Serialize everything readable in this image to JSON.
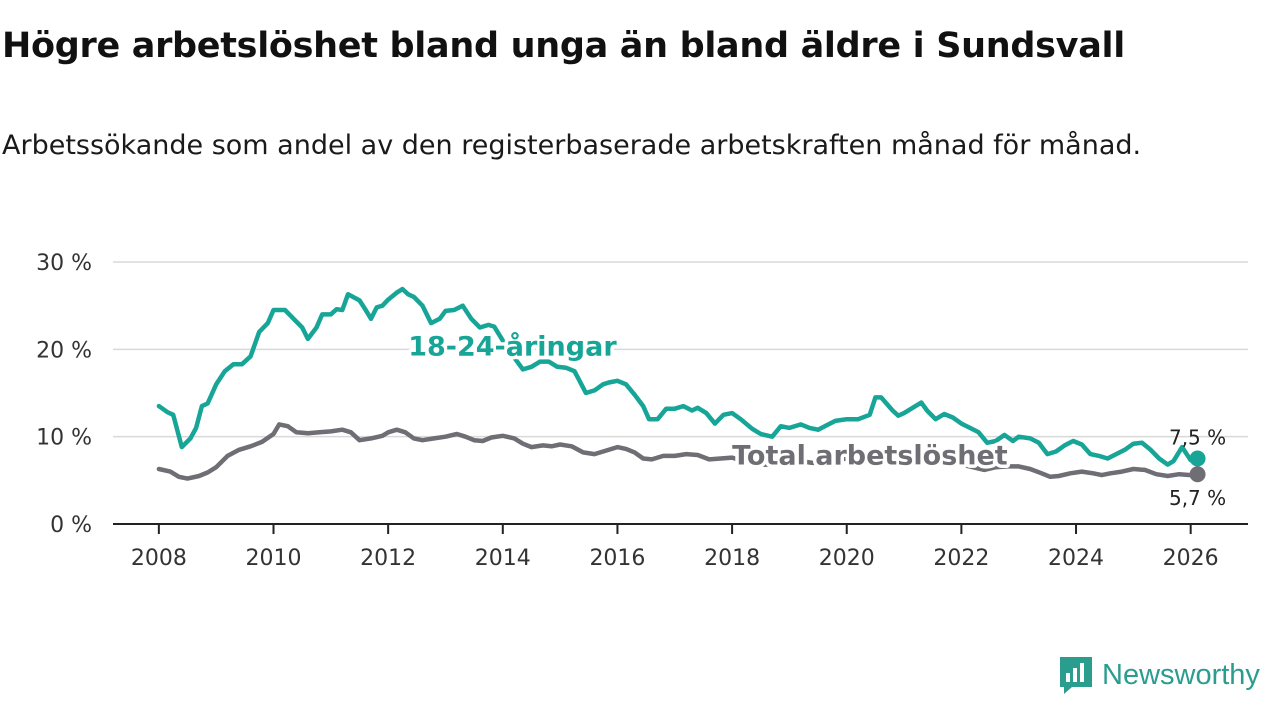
{
  "title": "Högre arbetslöshet bland unga än bland äldre i Sundsvall",
  "subtitle": "Arbetssökande som andel av den registerbaserade arbetskraften månad för månad.",
  "brand": {
    "name": "Newsworthy"
  },
  "colors": {
    "youth": "#16a596",
    "total": "#6f6e75",
    "grid": "#d9d9d9",
    "axis": "#222222"
  },
  "chart_data": {
    "type": "line",
    "title": "Högre arbetslöshet bland unga än bland äldre i Sundsvall",
    "xlabel": "",
    "ylabel": "",
    "xlim": [
      2007.2,
      2027.0
    ],
    "ylim": [
      0,
      30
    ],
    "x_ticks": [
      2008,
      2010,
      2012,
      2014,
      2016,
      2018,
      2020,
      2022,
      2024,
      2026
    ],
    "y_ticks": [
      0,
      10,
      20,
      30
    ],
    "y_tick_labels": [
      "0 %",
      "10 %",
      "20 %",
      "30 %"
    ],
    "grid": true,
    "series": [
      {
        "name": "18-24-åringar",
        "label": "18-24-åringar",
        "end_label": "7,5 %",
        "points": [
          [
            2008.0,
            13.5
          ],
          [
            2008.15,
            12.8
          ],
          [
            2008.25,
            12.5
          ],
          [
            2008.4,
            8.8
          ],
          [
            2008.55,
            9.8
          ],
          [
            2008.65,
            11.0
          ],
          [
            2008.75,
            13.5
          ],
          [
            2008.85,
            13.8
          ],
          [
            2009.0,
            16.0
          ],
          [
            2009.15,
            17.5
          ],
          [
            2009.3,
            18.3
          ],
          [
            2009.45,
            18.3
          ],
          [
            2009.6,
            19.2
          ],
          [
            2009.75,
            22.0
          ],
          [
            2009.9,
            23.0
          ],
          [
            2010.0,
            24.5
          ],
          [
            2010.2,
            24.5
          ],
          [
            2010.35,
            23.5
          ],
          [
            2010.5,
            22.5
          ],
          [
            2010.6,
            21.2
          ],
          [
            2010.75,
            22.5
          ],
          [
            2010.85,
            24.0
          ],
          [
            2011.0,
            24.0
          ],
          [
            2011.1,
            24.6
          ],
          [
            2011.2,
            24.5
          ],
          [
            2011.3,
            26.3
          ],
          [
            2011.5,
            25.6
          ],
          [
            2011.6,
            24.6
          ],
          [
            2011.7,
            23.5
          ],
          [
            2011.8,
            24.8
          ],
          [
            2011.9,
            25.0
          ],
          [
            2012.0,
            25.7
          ],
          [
            2012.15,
            26.5
          ],
          [
            2012.25,
            26.9
          ],
          [
            2012.35,
            26.3
          ],
          [
            2012.45,
            26.0
          ],
          [
            2012.6,
            25.0
          ],
          [
            2012.75,
            23.0
          ],
          [
            2012.9,
            23.5
          ],
          [
            2013.0,
            24.4
          ],
          [
            2013.15,
            24.5
          ],
          [
            2013.3,
            25.0
          ],
          [
            2013.45,
            23.5
          ],
          [
            2013.6,
            22.5
          ],
          [
            2013.75,
            22.8
          ],
          [
            2013.85,
            22.6
          ],
          [
            2014.0,
            21.0
          ],
          [
            2014.15,
            19.5
          ],
          [
            2014.35,
            17.7
          ],
          [
            2014.5,
            18.0
          ],
          [
            2014.65,
            18.6
          ],
          [
            2014.8,
            18.6
          ],
          [
            2014.95,
            18.0
          ],
          [
            2015.1,
            17.9
          ],
          [
            2015.25,
            17.5
          ],
          [
            2015.45,
            15.0
          ],
          [
            2015.6,
            15.3
          ],
          [
            2015.75,
            16.0
          ],
          [
            2015.85,
            16.2
          ],
          [
            2016.0,
            16.4
          ],
          [
            2016.15,
            16.0
          ],
          [
            2016.3,
            14.8
          ],
          [
            2016.45,
            13.5
          ],
          [
            2016.55,
            12.0
          ],
          [
            2016.7,
            12.0
          ],
          [
            2016.85,
            13.2
          ],
          [
            2017.0,
            13.2
          ],
          [
            2017.15,
            13.5
          ],
          [
            2017.3,
            13.0
          ],
          [
            2017.4,
            13.3
          ],
          [
            2017.55,
            12.7
          ],
          [
            2017.7,
            11.5
          ],
          [
            2017.85,
            12.5
          ],
          [
            2018.0,
            12.7
          ],
          [
            2018.15,
            12.0
          ],
          [
            2018.35,
            10.9
          ],
          [
            2018.5,
            10.3
          ],
          [
            2018.7,
            10.0
          ],
          [
            2018.85,
            11.2
          ],
          [
            2019.0,
            11.0
          ],
          [
            2019.2,
            11.4
          ],
          [
            2019.35,
            11.0
          ],
          [
            2019.5,
            10.8
          ],
          [
            2019.65,
            11.3
          ],
          [
            2019.8,
            11.8
          ],
          [
            2020.0,
            12.0
          ],
          [
            2020.2,
            12.0
          ],
          [
            2020.4,
            12.5
          ],
          [
            2020.5,
            14.5
          ],
          [
            2020.6,
            14.5
          ],
          [
            2020.8,
            13.0
          ],
          [
            2020.9,
            12.4
          ],
          [
            2021.0,
            12.7
          ],
          [
            2021.2,
            13.5
          ],
          [
            2021.3,
            13.9
          ],
          [
            2021.4,
            13.0
          ],
          [
            2021.55,
            12.0
          ],
          [
            2021.7,
            12.6
          ],
          [
            2021.85,
            12.2
          ],
          [
            2022.0,
            11.5
          ],
          [
            2022.15,
            11.0
          ],
          [
            2022.3,
            10.5
          ],
          [
            2022.45,
            9.3
          ],
          [
            2022.6,
            9.5
          ],
          [
            2022.75,
            10.2
          ],
          [
            2022.9,
            9.5
          ],
          [
            2023.0,
            10.0
          ],
          [
            2023.2,
            9.8
          ],
          [
            2023.35,
            9.3
          ],
          [
            2023.5,
            8.0
          ],
          [
            2023.65,
            8.3
          ],
          [
            2023.8,
            9.0
          ],
          [
            2023.95,
            9.5
          ],
          [
            2024.1,
            9.1
          ],
          [
            2024.25,
            8.0
          ],
          [
            2024.4,
            7.8
          ],
          [
            2024.55,
            7.5
          ],
          [
            2024.7,
            8.0
          ],
          [
            2024.85,
            8.5
          ],
          [
            2025.0,
            9.2
          ],
          [
            2025.15,
            9.3
          ],
          [
            2025.3,
            8.5
          ],
          [
            2025.45,
            7.5
          ],
          [
            2025.6,
            6.8
          ],
          [
            2025.7,
            7.2
          ],
          [
            2025.85,
            8.8
          ],
          [
            2026.0,
            7.3
          ],
          [
            2026.12,
            7.5
          ]
        ]
      },
      {
        "name": "Total arbetslöshet",
        "label": "Total arbetslöshet",
        "end_label": "5,7 %",
        "points": [
          [
            2008.0,
            6.3
          ],
          [
            2008.2,
            6.0
          ],
          [
            2008.35,
            5.4
          ],
          [
            2008.5,
            5.2
          ],
          [
            2008.7,
            5.5
          ],
          [
            2008.85,
            5.9
          ],
          [
            2009.0,
            6.5
          ],
          [
            2009.2,
            7.8
          ],
          [
            2009.4,
            8.5
          ],
          [
            2009.6,
            8.9
          ],
          [
            2009.8,
            9.4
          ],
          [
            2010.0,
            10.3
          ],
          [
            2010.1,
            11.4
          ],
          [
            2010.25,
            11.2
          ],
          [
            2010.4,
            10.5
          ],
          [
            2010.6,
            10.4
          ],
          [
            2010.8,
            10.5
          ],
          [
            2011.0,
            10.6
          ],
          [
            2011.2,
            10.8
          ],
          [
            2011.35,
            10.5
          ],
          [
            2011.5,
            9.6
          ],
          [
            2011.7,
            9.8
          ],
          [
            2011.9,
            10.1
          ],
          [
            2012.0,
            10.5
          ],
          [
            2012.15,
            10.8
          ],
          [
            2012.3,
            10.5
          ],
          [
            2012.45,
            9.8
          ],
          [
            2012.6,
            9.6
          ],
          [
            2012.8,
            9.8
          ],
          [
            2013.0,
            10.0
          ],
          [
            2013.2,
            10.3
          ],
          [
            2013.35,
            10.0
          ],
          [
            2013.5,
            9.6
          ],
          [
            2013.65,
            9.5
          ],
          [
            2013.8,
            9.9
          ],
          [
            2014.0,
            10.1
          ],
          [
            2014.2,
            9.8
          ],
          [
            2014.35,
            9.2
          ],
          [
            2014.5,
            8.8
          ],
          [
            2014.7,
            9.0
          ],
          [
            2014.85,
            8.9
          ],
          [
            2015.0,
            9.1
          ],
          [
            2015.2,
            8.9
          ],
          [
            2015.4,
            8.2
          ],
          [
            2015.6,
            8.0
          ],
          [
            2015.8,
            8.4
          ],
          [
            2016.0,
            8.8
          ],
          [
            2016.15,
            8.6
          ],
          [
            2016.3,
            8.2
          ],
          [
            2016.45,
            7.5
          ],
          [
            2016.6,
            7.4
          ],
          [
            2016.8,
            7.8
          ],
          [
            2017.0,
            7.8
          ],
          [
            2017.2,
            8.0
          ],
          [
            2017.4,
            7.9
          ],
          [
            2017.6,
            7.4
          ],
          [
            2017.8,
            7.5
          ],
          [
            2018.0,
            7.6
          ],
          [
            2018.2,
            7.2
          ],
          [
            2018.4,
            6.8
          ],
          [
            2018.6,
            6.8
          ],
          [
            2018.8,
            7.0
          ],
          [
            2019.0,
            7.0
          ],
          [
            2019.2,
            7.2
          ],
          [
            2019.4,
            7.0
          ],
          [
            2019.6,
            7.1
          ],
          [
            2019.8,
            7.3
          ],
          [
            2020.0,
            7.5
          ],
          [
            2020.2,
            7.7
          ],
          [
            2020.4,
            8.0
          ],
          [
            2020.6,
            8.2
          ],
          [
            2020.8,
            8.0
          ],
          [
            2021.0,
            7.8
          ],
          [
            2021.2,
            7.8
          ],
          [
            2021.4,
            7.5
          ],
          [
            2021.6,
            7.2
          ],
          [
            2021.8,
            7.0
          ],
          [
            2022.0,
            6.8
          ],
          [
            2022.2,
            6.5
          ],
          [
            2022.4,
            6.2
          ],
          [
            2022.6,
            6.5
          ],
          [
            2022.8,
            6.6
          ],
          [
            2023.0,
            6.6
          ],
          [
            2023.2,
            6.3
          ],
          [
            2023.4,
            5.8
          ],
          [
            2023.55,
            5.4
          ],
          [
            2023.7,
            5.5
          ],
          [
            2023.9,
            5.8
          ],
          [
            2024.1,
            6.0
          ],
          [
            2024.3,
            5.8
          ],
          [
            2024.45,
            5.6
          ],
          [
            2024.6,
            5.8
          ],
          [
            2024.8,
            6.0
          ],
          [
            2025.0,
            6.3
          ],
          [
            2025.2,
            6.2
          ],
          [
            2025.4,
            5.7
          ],
          [
            2025.6,
            5.5
          ],
          [
            2025.8,
            5.7
          ],
          [
            2026.0,
            5.6
          ],
          [
            2026.12,
            5.7
          ]
        ]
      }
    ]
  }
}
